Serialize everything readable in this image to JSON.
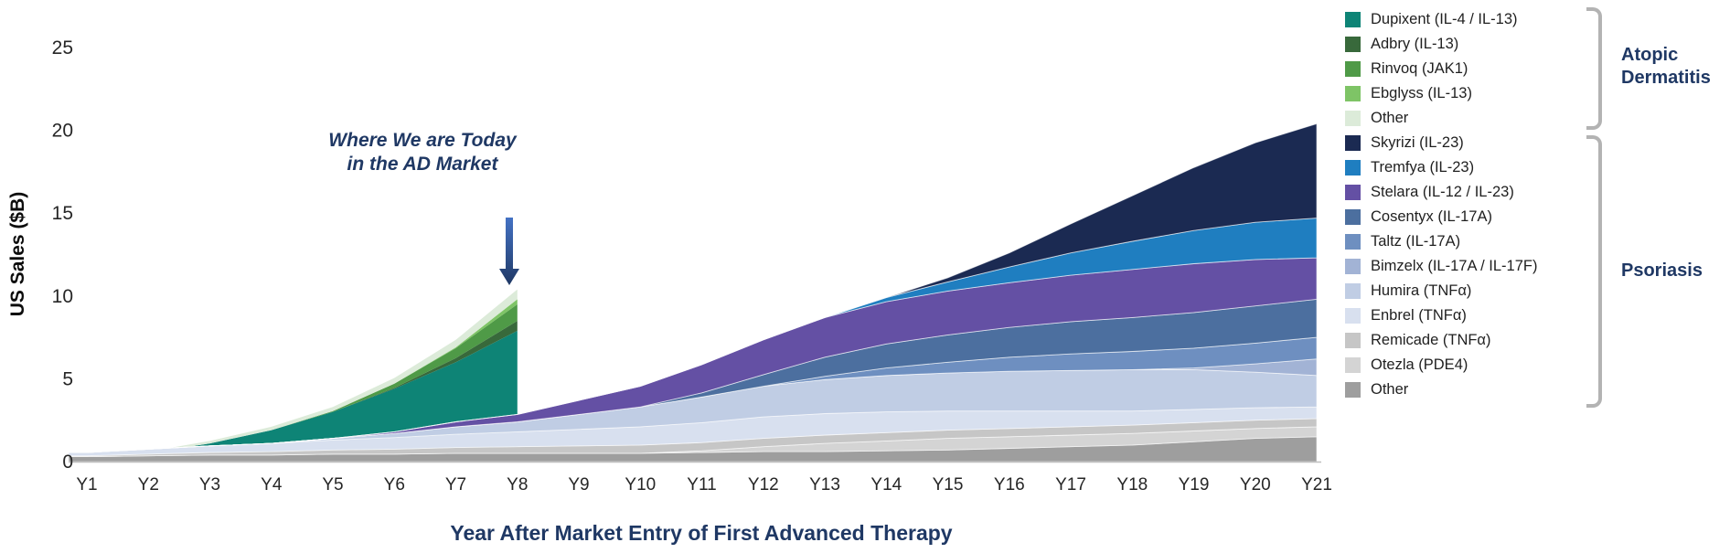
{
  "axes": {
    "y_title": "US Sales ($B)",
    "x_title": "Year After Market Entry of First Advanced Therapy",
    "y_ticks": [
      0,
      5,
      10,
      15,
      20,
      25
    ],
    "y_max": 25,
    "x_labels": [
      "Y1",
      "Y2",
      "Y3",
      "Y4",
      "Y5",
      "Y6",
      "Y7",
      "Y8",
      "Y9",
      "Y10",
      "Y11",
      "Y12",
      "Y13",
      "Y14",
      "Y15",
      "Y16",
      "Y17",
      "Y18",
      "Y19",
      "Y20",
      "Y21"
    ]
  },
  "annotation": {
    "line1": "Where We are Today",
    "line2": "in the AD Market",
    "arrow_color_top": "#4472c4",
    "arrow_color_bottom": "#1f3864"
  },
  "colors": {
    "title_navy": "#1f3864",
    "tick_text": "#262626",
    "bracket_gray": "#b3b3b3",
    "axis_line": "#bfbfbf"
  },
  "legend": {
    "groups": [
      {
        "name": "Atopic Dermatitis",
        "label_lines": [
          "Atopic",
          "Dermatitis"
        ],
        "items": [
          {
            "label": "Dupixent (IL-4 / IL-13)",
            "color": "#0e8476"
          },
          {
            "label": "Adbry (IL-13)",
            "color": "#38693b"
          },
          {
            "label": "Rinvoq (JAK1)",
            "color": "#4f9a47"
          },
          {
            "label": "Ebglyss (IL-13)",
            "color": "#7ec466"
          },
          {
            "label": "Other",
            "color": "#dcebd9"
          }
        ]
      },
      {
        "name": "Psoriasis",
        "label_lines": [
          "Psoriasis"
        ],
        "items": [
          {
            "label": "Skyrizi (IL-23)",
            "color": "#1b2a52"
          },
          {
            "label": "Tremfya (IL-23)",
            "color": "#1f7ec0"
          },
          {
            "label": "Stelara (IL-12 / IL-23)",
            "color": "#6450a4"
          },
          {
            "label": "Cosentyx (IL-17A)",
            "color": "#4c6f9f"
          },
          {
            "label": "Taltz (IL-17A)",
            "color": "#6e8fc0"
          },
          {
            "label": "Bimzelx (IL-17A / IL-17F)",
            "color": "#a2b3d5"
          },
          {
            "label": "Humira (TNFα)",
            "color": "#c0cde4"
          },
          {
            "label": "Enbrel (TNFα)",
            "color": "#d8e0ef"
          },
          {
            "label": "Remicade (TNFα)",
            "color": "#c6c6c6"
          },
          {
            "label": "Otezla (PDE4)",
            "color": "#d4d4d4"
          },
          {
            "label": "Other",
            "color": "#9e9e9e"
          }
        ]
      }
    ]
  },
  "chart_data": {
    "type": "area",
    "stacked": true,
    "title": "",
    "xlabel": "Year After Market Entry of First Advanced Therapy",
    "ylabel": "US Sales ($B)",
    "ylim": [
      0,
      25
    ],
    "grid": false,
    "x": [
      "Y1",
      "Y2",
      "Y3",
      "Y4",
      "Y5",
      "Y6",
      "Y7",
      "Y8",
      "Y9",
      "Y10",
      "Y11",
      "Y12",
      "Y13",
      "Y14",
      "Y15",
      "Y16",
      "Y17",
      "Y18",
      "Y19",
      "Y20",
      "Y21"
    ],
    "groups": [
      {
        "name": "Atopic Dermatitis",
        "note": "stack drawn behind, data ends at Y8 (today)",
        "series": [
          {
            "name": "Dupixent (IL-4 / IL-13)",
            "color": "#0e8476",
            "values": [
              0.15,
              0.5,
              1.1,
              1.9,
              3.0,
              4.4,
              6.0,
              7.9
            ]
          },
          {
            "name": "Adbry (IL-13)",
            "color": "#38693b",
            "values": [
              0,
              0,
              0,
              0,
              0,
              0.05,
              0.25,
              0.6
            ]
          },
          {
            "name": "Rinvoq (JAK1)",
            "color": "#4f9a47",
            "values": [
              0,
              0,
              0,
              0,
              0.05,
              0.25,
              0.6,
              1.0
            ]
          },
          {
            "name": "Ebglyss (IL-13)",
            "color": "#7ec466",
            "values": [
              0,
              0,
              0,
              0,
              0,
              0,
              0.05,
              0.3
            ]
          },
          {
            "name": "Other (AD)",
            "color": "#dcebd9",
            "values": [
              0.05,
              0.1,
              0.15,
              0.2,
              0.25,
              0.35,
              0.45,
              0.6
            ]
          }
        ]
      },
      {
        "name": "Psoriasis",
        "note": "stack drawn in front, Y1-Y21; listed bottom-to-top",
        "series": [
          {
            "name": "Other (PsO)",
            "color": "#9e9e9e",
            "values": [
              0.3,
              0.35,
              0.4,
              0.4,
              0.45,
              0.45,
              0.5,
              0.5,
              0.5,
              0.5,
              0.55,
              0.6,
              0.6,
              0.65,
              0.7,
              0.8,
              0.9,
              1.0,
              1.2,
              1.4,
              1.5
            ]
          },
          {
            "name": "Otezla (PDE4)",
            "color": "#d4d4d4",
            "values": [
              0,
              0,
              0,
              0,
              0,
              0,
              0,
              0,
              0,
              0,
              0.1,
              0.3,
              0.5,
              0.6,
              0.7,
              0.7,
              0.7,
              0.7,
              0.65,
              0.6,
              0.6
            ]
          },
          {
            "name": "Remicade (TNFα)",
            "color": "#c6c6c6",
            "values": [
              0.05,
              0.1,
              0.15,
              0.2,
              0.25,
              0.3,
              0.35,
              0.4,
              0.45,
              0.5,
              0.5,
              0.5,
              0.5,
              0.5,
              0.5,
              0.5,
              0.5,
              0.5,
              0.5,
              0.5,
              0.5
            ]
          },
          {
            "name": "Enbrel (TNFα)",
            "color": "#d8e0ef",
            "values": [
              0.2,
              0.3,
              0.4,
              0.5,
              0.6,
              0.7,
              0.8,
              0.9,
              1.0,
              1.1,
              1.2,
              1.3,
              1.3,
              1.25,
              1.15,
              1.05,
              0.95,
              0.85,
              0.8,
              0.75,
              0.7
            ]
          },
          {
            "name": "Humira (TNFα)",
            "color": "#c0cde4",
            "values": [
              0,
              0,
              0,
              0,
              0.1,
              0.25,
              0.45,
              0.6,
              0.9,
              1.2,
              1.55,
              1.85,
              2.05,
              2.2,
              2.3,
              2.4,
              2.45,
              2.5,
              2.4,
              2.15,
              1.9
            ]
          },
          {
            "name": "Bimzelx (IL-17A / IL-17F)",
            "color": "#a2b3d5",
            "values": [
              0,
              0,
              0,
              0,
              0,
              0,
              0,
              0,
              0,
              0,
              0,
              0,
              0,
              0,
              0,
              0,
              0,
              0,
              0.1,
              0.5,
              1.0
            ]
          },
          {
            "name": "Taltz (IL-17A)",
            "color": "#6e8fc0",
            "values": [
              0,
              0,
              0,
              0,
              0,
              0,
              0,
              0,
              0,
              0,
              0,
              0,
              0.2,
              0.45,
              0.65,
              0.85,
              1.0,
              1.1,
              1.2,
              1.25,
              1.3
            ]
          },
          {
            "name": "Cosentyx (IL-17A)",
            "color": "#4c6f9f",
            "values": [
              0,
              0,
              0,
              0,
              0,
              0,
              0,
              0,
              0,
              0,
              0.25,
              0.7,
              1.15,
              1.45,
              1.65,
              1.8,
              1.95,
              2.05,
              2.15,
              2.25,
              2.3
            ]
          },
          {
            "name": "Stelara (IL-12 / IL-23)",
            "color": "#6450a4",
            "values": [
              0,
              0,
              0,
              0,
              0,
              0.1,
              0.3,
              0.45,
              0.85,
              1.25,
              1.7,
              2.1,
              2.4,
              2.55,
              2.65,
              2.7,
              2.8,
              2.9,
              2.95,
              2.8,
              2.5
            ]
          },
          {
            "name": "Tremfya (IL-23)",
            "color": "#1f7ec0",
            "values": [
              0,
              0,
              0,
              0,
              0,
              0,
              0,
              0,
              0,
              0,
              0,
              0,
              0,
              0.25,
              0.55,
              0.95,
              1.35,
              1.7,
              2.0,
              2.25,
              2.4
            ]
          },
          {
            "name": "Skyrizi (IL-23)",
            "color": "#1b2a52",
            "values": [
              0,
              0,
              0,
              0,
              0,
              0,
              0,
              0,
              0,
              0,
              0,
              0,
              0,
              0,
              0.25,
              0.85,
              1.75,
              2.75,
              3.8,
              4.8,
              5.7
            ]
          }
        ]
      }
    ]
  }
}
